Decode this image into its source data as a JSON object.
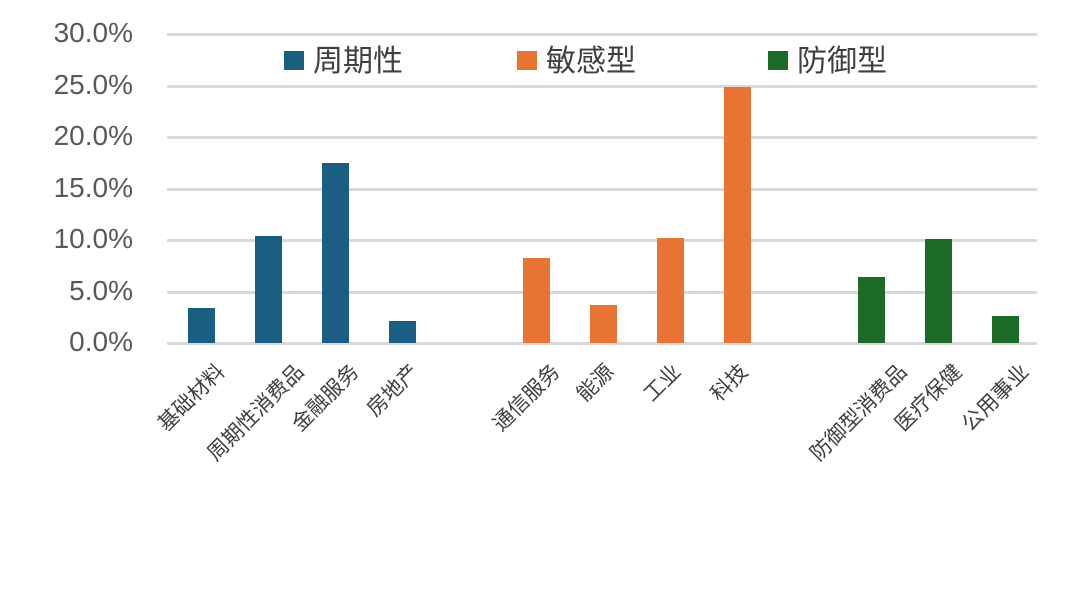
{
  "chart_data": {
    "type": "bar",
    "title": "",
    "xlabel": "",
    "ylabel": "",
    "ylim": [
      0,
      30
    ],
    "yticks": [
      "0.0%",
      "5.0%",
      "10.0%",
      "15.0%",
      "20.0%",
      "25.0%",
      "30.0%"
    ],
    "grid": true,
    "legend_position": "top",
    "categories": [
      "基础材料",
      "周期性消费品",
      "金融服务",
      "房地产",
      "通信服务",
      "能源",
      "工业",
      "科技",
      "防御型消费品",
      "医疗保健",
      "公用事业"
    ],
    "series": [
      {
        "name": "周期性",
        "color": "#1a5e82",
        "categories": [
          "基础材料",
          "周期性消费品",
          "金融服务",
          "房地产"
        ],
        "values": [
          3.4,
          10.4,
          17.5,
          2.1
        ]
      },
      {
        "name": "敏感型",
        "color": "#e97333",
        "categories": [
          "通信服务",
          "能源",
          "工业",
          "科技"
        ],
        "values": [
          8.3,
          3.7,
          10.2,
          24.9
        ]
      },
      {
        "name": "防御型",
        "color": "#1c6b28",
        "categories": [
          "防御型消费品",
          "医疗保健",
          "公用事业"
        ],
        "values": [
          6.4,
          10.1,
          2.6
        ]
      }
    ],
    "unit": "%"
  },
  "legend": [
    {
      "label": "周期性",
      "color": "#1a5e82"
    },
    {
      "label": "敏感型",
      "color": "#e97333"
    },
    {
      "label": "防御型",
      "color": "#1c6b28"
    }
  ],
  "colors": {
    "grid": "#d9d9d9",
    "tick_text": "#595959",
    "label_text": "#404040"
  }
}
